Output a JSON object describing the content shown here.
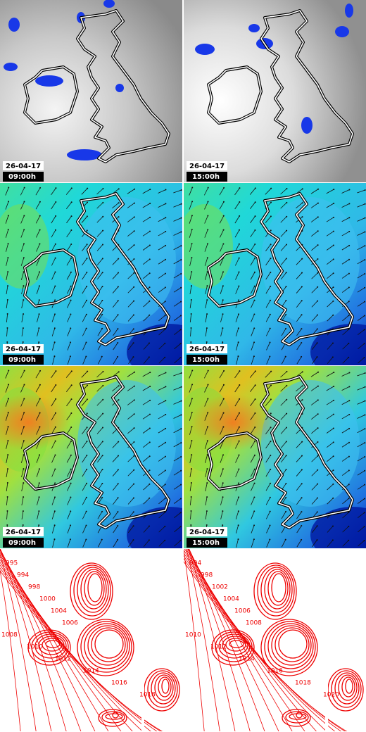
{
  "panels": [
    {
      "date": "26-04-17",
      "time": "09:00h"
    },
    {
      "date": "26-04-17",
      "time": "15:00h"
    },
    {
      "date": "26-04-17",
      "time": "09:00h"
    },
    {
      "date": "26-04-17",
      "time": "15:00h"
    },
    {
      "date": "26-04-17",
      "time": "09:00h"
    },
    {
      "date": "26-04-17",
      "time": "15:00h"
    }
  ],
  "isobar_maps": [
    {
      "labels": [
        "995",
        "994",
        "998",
        "1000",
        "1004",
        "1006",
        "1008",
        "1010",
        "1012",
        "1014",
        "1016",
        "1018"
      ]
    },
    {
      "labels": [
        "994",
        "998",
        "1002",
        "1004",
        "1006",
        "1008",
        "1010",
        "1012",
        "1014",
        "1016",
        "1018",
        "1020"
      ]
    }
  ]
}
